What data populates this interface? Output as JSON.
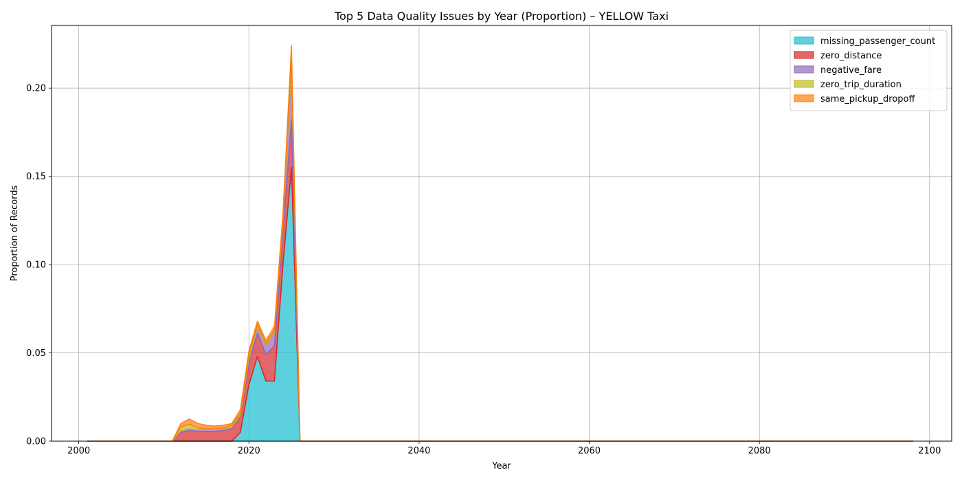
{
  "chart_data": {
    "type": "area",
    "stacked": true,
    "title": "Top 5 Data Quality Issues by Year (Proportion) – YELLOW Taxi",
    "xlabel": "Year",
    "ylabel": "Proportion of Records",
    "xlim": [
      1996.8,
      2102.6
    ],
    "ylim": [
      0,
      0.2355
    ],
    "xticks": [
      2000,
      2020,
      2040,
      2060,
      2080,
      2100
    ],
    "xtick_labels": [
      "2000",
      "2020",
      "2040",
      "2060",
      "2080",
      "2100"
    ],
    "yticks": [
      0,
      0.05,
      0.1,
      0.15,
      0.2
    ],
    "ytick_labels": [
      "0.00",
      "0.05",
      "0.10",
      "0.15",
      "0.20"
    ],
    "grid": true,
    "legend_position": "top-right",
    "x": [
      2001,
      2011,
      2012,
      2013,
      2014,
      2015,
      2016,
      2017,
      2018,
      2019,
      2020,
      2021,
      2022,
      2023,
      2024,
      2025,
      2026,
      2098
    ],
    "series": [
      {
        "name": "missing_passenger_count",
        "color": "#17becf",
        "values": [
          0,
          0,
          0,
          0,
          0,
          0,
          0,
          0,
          0,
          0.005,
          0.032,
          0.048,
          0.034,
          0.034,
          0.1,
          0.155,
          0,
          0
        ]
      },
      {
        "name": "zero_distance",
        "color": "#d62728",
        "values": [
          0,
          0,
          0.005,
          0.006,
          0.0055,
          0.0055,
          0.0055,
          0.006,
          0.007,
          0.009,
          0.012,
          0.013,
          0.015,
          0.02,
          0.018,
          0.027,
          0,
          0
        ]
      },
      {
        "name": "negative_fare",
        "color": "#9467bd",
        "values": [
          0,
          0,
          0.001,
          0.001,
          0.001,
          0.001,
          0.001,
          0.001,
          0.001,
          0.001,
          0.003,
          0.004,
          0.005,
          0.008,
          0.006,
          0.03,
          0,
          0
        ]
      },
      {
        "name": "zero_trip_duration",
        "color": "#bcbd22",
        "values": [
          0,
          0,
          0.002,
          0.0025,
          0.001,
          0.0005,
          0.0005,
          0.0005,
          0.001,
          0.001,
          0.002,
          0.001,
          0.001,
          0.001,
          0.002,
          0.005,
          0,
          0
        ]
      },
      {
        "name": "same_pickup_dropoff",
        "color": "#ff7f0e",
        "values": [
          0,
          0,
          0.002,
          0.003,
          0.0025,
          0.002,
          0.0015,
          0.0015,
          0.001,
          0.002,
          0.002,
          0.002,
          0.002,
          0.002,
          0.003,
          0.007,
          0,
          0
        ]
      }
    ]
  }
}
